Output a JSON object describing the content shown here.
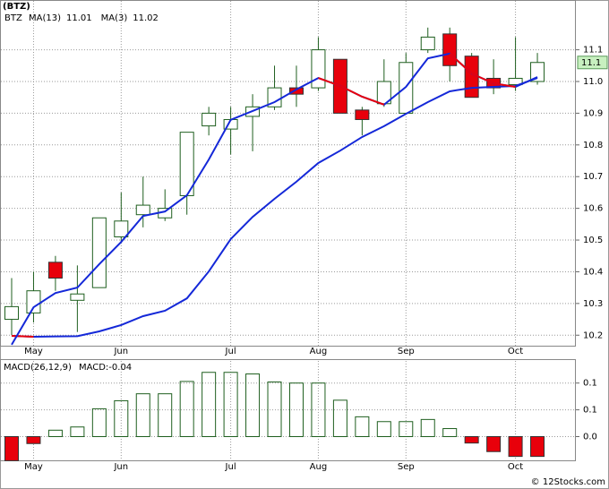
{
  "chart_data": [
    {
      "type": "candlestick",
      "title": "(BTZ)",
      "symbol": "BTZ",
      "categories": [
        null,
        "May",
        null,
        null,
        null,
        "Jun",
        null,
        null,
        null,
        null,
        "Jul",
        null,
        null,
        null,
        "Aug",
        null,
        null,
        null,
        "Sep",
        null,
        null,
        null,
        null,
        "Oct",
        null
      ],
      "open": [
        10.25,
        10.27,
        10.43,
        10.31,
        10.35,
        10.51,
        10.58,
        10.57,
        10.64,
        10.86,
        10.85,
        10.89,
        10.92,
        10.98,
        10.98,
        11.07,
        10.91,
        10.93,
        10.9,
        11.1,
        11.15,
        11.08,
        11.01,
        10.99,
        11.0
      ],
      "high": [
        10.38,
        10.4,
        10.45,
        10.42,
        10.57,
        10.65,
        10.7,
        10.66,
        10.84,
        10.92,
        10.92,
        10.96,
        11.05,
        11.05,
        11.14,
        11.07,
        10.92,
        11.07,
        11.09,
        11.17,
        11.17,
        11.09,
        11.07,
        11.14,
        11.09
      ],
      "low": [
        10.2,
        10.24,
        10.34,
        10.21,
        10.35,
        10.49,
        10.54,
        10.56,
        10.58,
        10.83,
        10.77,
        10.78,
        10.91,
        10.92,
        10.97,
        10.9,
        10.83,
        10.92,
        10.9,
        11.09,
        11.0,
        10.95,
        10.96,
        10.97,
        10.99
      ],
      "close": [
        10.29,
        10.34,
        10.38,
        10.33,
        10.57,
        10.56,
        10.61,
        10.6,
        10.84,
        10.9,
        10.88,
        10.92,
        10.98,
        10.96,
        11.1,
        10.9,
        10.88,
        11.0,
        11.06,
        11.14,
        11.05,
        10.95,
        10.98,
        11.01,
        11.06
      ],
      "up_color": "#ffffff",
      "down_color": "#e8000b",
      "outline_color": "#1f5f1f",
      "series": [
        {
          "name": "MA(13)",
          "last": 11.01,
          "color": "#1428d8",
          "values": [
            10.198,
            10.195,
            10.196,
            10.197,
            10.212,
            10.232,
            10.26,
            10.277,
            10.316,
            10.401,
            10.503,
            10.573,
            10.63,
            10.684,
            10.743,
            10.782,
            10.825,
            10.859,
            10.898,
            10.935,
            10.969,
            10.98,
            10.983,
            10.986,
            11.011
          ]
        },
        {
          "name": "MA(3)",
          "last": 11.02,
          "color": "#1428d8",
          "values": [
            10.17,
            10.288,
            10.333,
            10.35,
            10.424,
            10.494,
            10.576,
            10.59,
            10.641,
            10.754,
            10.879,
            10.907,
            10.935,
            10.975,
            11.011,
            10.986,
            10.952,
            10.927,
            10.983,
            11.073,
            11.088,
            11.025,
            10.994,
            10.983,
            11.014
          ]
        }
      ],
      "line_down_color": "#e8000b",
      "last_price": 11.1,
      "ylim": [
        10.164,
        11.257
      ],
      "yticks": [
        10.2,
        10.3,
        10.4,
        10.5,
        10.6,
        10.7,
        10.8,
        10.9,
        {
          "value": 11,
          "label": "11.0"
        },
        11.1
      ],
      "grid": true
    },
    {
      "type": "bar",
      "title": "MACD(26,12,9)",
      "subtitle": "MACD:-0.04",
      "categories": [
        null,
        "May",
        null,
        null,
        null,
        "Jun",
        null,
        null,
        null,
        null,
        "Jul",
        null,
        null,
        null,
        "Aug",
        null,
        null,
        null,
        "Sep",
        null,
        null,
        null,
        null,
        "Oct",
        null
      ],
      "values": [
        -0.045,
        -0.013,
        0.012,
        0.018,
        0.052,
        0.067,
        0.08,
        0.08,
        0.103,
        0.12,
        0.12,
        0.117,
        0.102,
        0.1,
        0.1,
        0.068,
        0.037,
        0.028,
        0.028,
        0.032,
        0.015,
        -0.012,
        -0.028,
        -0.037,
        -0.037
      ],
      "up_color": "#1f5f1f",
      "down_color": "#e8000b",
      "ylim": [
        -0.046,
        0.143
      ],
      "yticks": [
        0.1,
        {
          "value": 0.05,
          "label": "0.1"
        },
        {
          "value": 0,
          "label": "0.0"
        }
      ],
      "grid": true,
      "footer": "© 12Stocks.com"
    }
  ]
}
